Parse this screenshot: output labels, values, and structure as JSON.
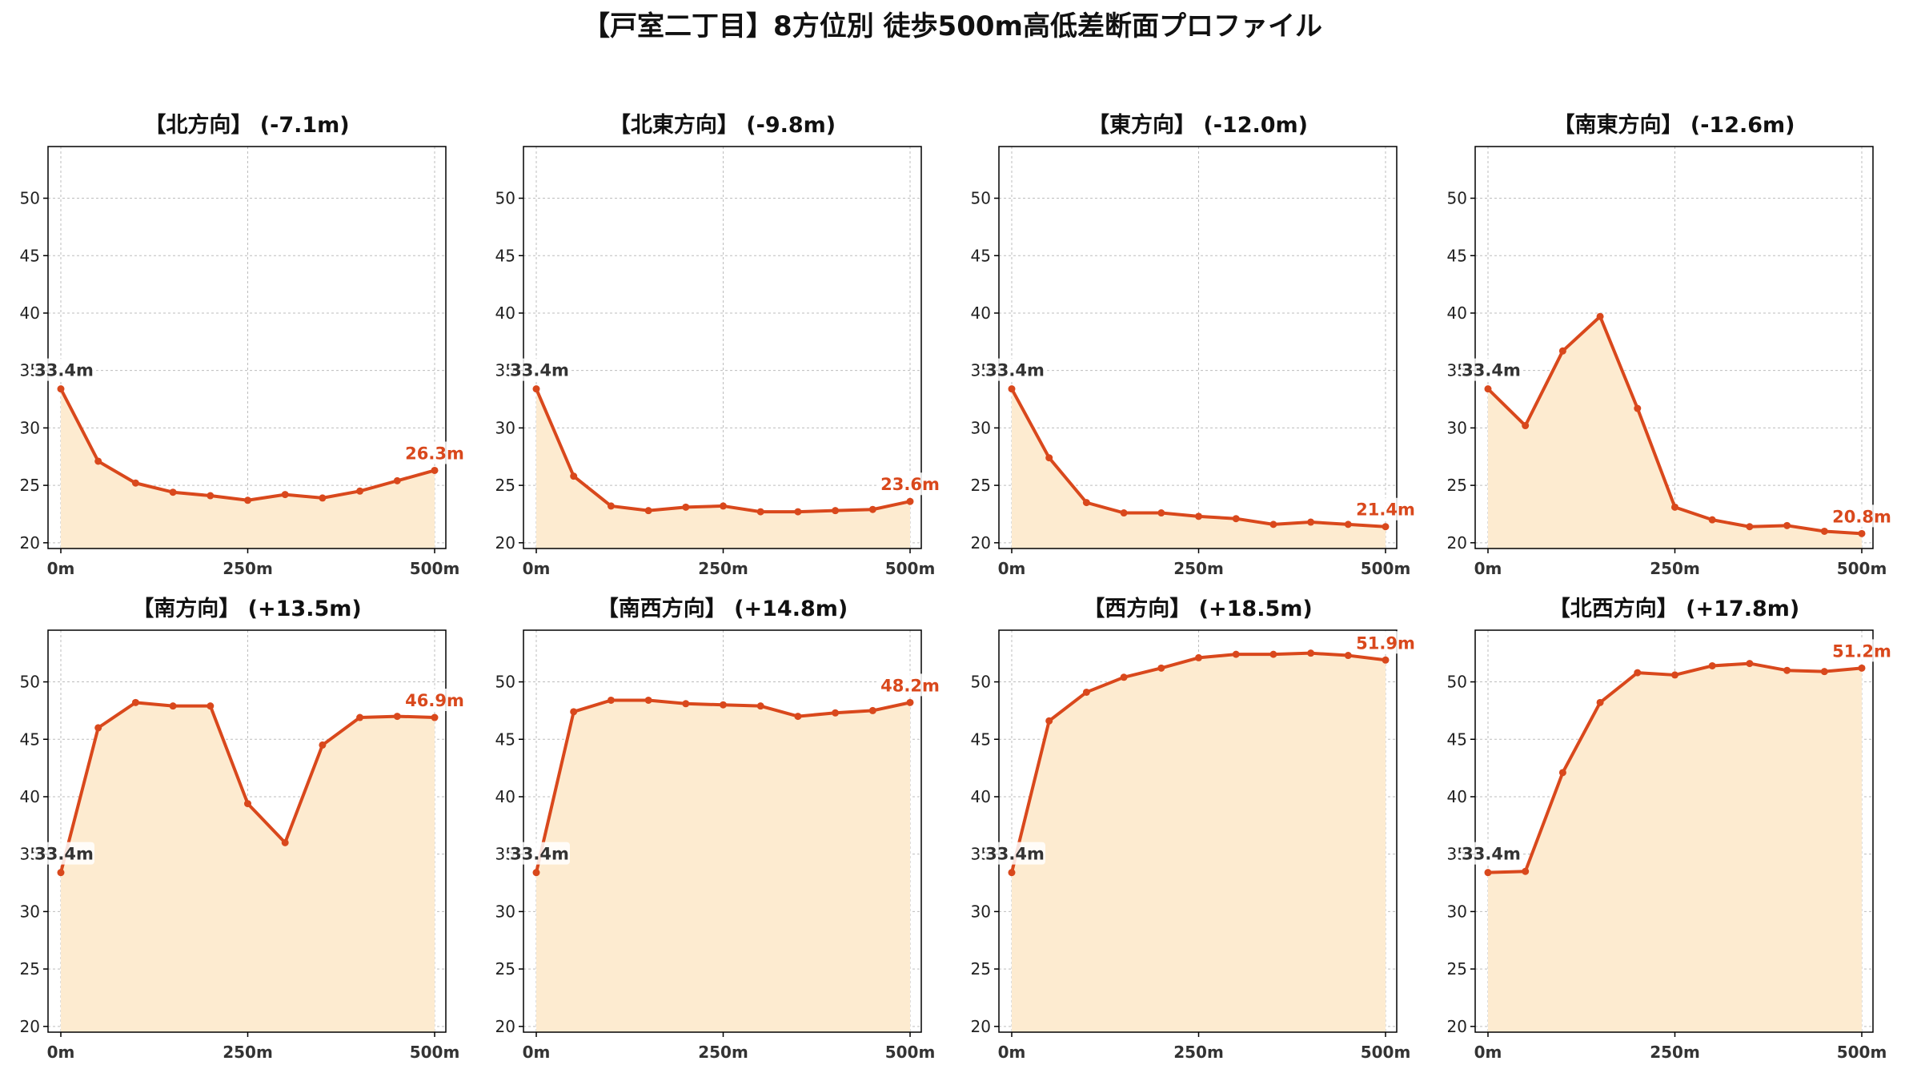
{
  "title": "【戸室二丁目】8方位別 徒歩500m高低差断面プロファイル",
  "colors": {
    "line": "#d9481c",
    "fill": "#fdebd0",
    "grid": "#bdbdbd",
    "axis": "#000000",
    "text": "#222222"
  },
  "chart_data": [
    {
      "type": "area",
      "title": "【北方向】 (-7.1m)",
      "x": [
        0,
        50,
        100,
        150,
        200,
        250,
        300,
        350,
        400,
        450,
        500
      ],
      "values": [
        33.4,
        27.1,
        25.2,
        24.4,
        24.1,
        23.7,
        24.2,
        23.9,
        24.5,
        25.4,
        26.3
      ],
      "ylim": [
        19.5,
        54.5
      ],
      "yticks": [
        "20",
        "25",
        "30",
        "35",
        "40",
        "45",
        "50"
      ],
      "xticks": [
        "0m",
        "250m",
        "500m"
      ],
      "start_label": "33.4m",
      "end_label": "26.3m",
      "grid": true
    },
    {
      "type": "area",
      "title": "【北東方向】 (-9.8m)",
      "x": [
        0,
        50,
        100,
        150,
        200,
        250,
        300,
        350,
        400,
        450,
        500
      ],
      "values": [
        33.4,
        25.8,
        23.2,
        22.8,
        23.1,
        23.2,
        22.7,
        22.7,
        22.8,
        22.9,
        23.6
      ],
      "ylim": [
        19.5,
        54.5
      ],
      "yticks": [
        "20",
        "25",
        "30",
        "35",
        "40",
        "45",
        "50"
      ],
      "xticks": [
        "0m",
        "250m",
        "500m"
      ],
      "start_label": "33.4m",
      "end_label": "23.6m",
      "grid": true
    },
    {
      "type": "area",
      "title": "【東方向】 (-12.0m)",
      "x": [
        0,
        50,
        100,
        150,
        200,
        250,
        300,
        350,
        400,
        450,
        500
      ],
      "values": [
        33.4,
        27.4,
        23.5,
        22.6,
        22.6,
        22.3,
        22.1,
        21.6,
        21.8,
        21.6,
        21.4
      ],
      "ylim": [
        19.5,
        54.5
      ],
      "yticks": [
        "20",
        "25",
        "30",
        "35",
        "40",
        "45",
        "50"
      ],
      "xticks": [
        "0m",
        "250m",
        "500m"
      ],
      "start_label": "33.4m",
      "end_label": "21.4m",
      "grid": true
    },
    {
      "type": "area",
      "title": "【南東方向】 (-12.6m)",
      "x": [
        0,
        50,
        100,
        150,
        200,
        250,
        300,
        350,
        400,
        450,
        500
      ],
      "values": [
        33.4,
        30.2,
        36.7,
        39.7,
        31.7,
        23.1,
        22.0,
        21.4,
        21.5,
        21.0,
        20.8
      ],
      "ylim": [
        19.5,
        54.5
      ],
      "yticks": [
        "20",
        "25",
        "30",
        "35",
        "40",
        "45",
        "50"
      ],
      "xticks": [
        "0m",
        "250m",
        "500m"
      ],
      "start_label": "33.4m",
      "end_label": "20.8m",
      "grid": true
    },
    {
      "type": "area",
      "title": "【南方向】 (+13.5m)",
      "x": [
        0,
        50,
        100,
        150,
        200,
        250,
        300,
        350,
        400,
        450,
        500
      ],
      "values": [
        33.4,
        46.0,
        48.2,
        47.9,
        47.9,
        39.4,
        36.0,
        44.5,
        46.9,
        47.0,
        46.9
      ],
      "ylim": [
        19.5,
        54.5
      ],
      "yticks": [
        "20",
        "25",
        "30",
        "35",
        "40",
        "45",
        "50"
      ],
      "xticks": [
        "0m",
        "250m",
        "500m"
      ],
      "start_label": "33.4m",
      "end_label": "46.9m",
      "grid": true
    },
    {
      "type": "area",
      "title": "【南西方向】 (+14.8m)",
      "x": [
        0,
        50,
        100,
        150,
        200,
        250,
        300,
        350,
        400,
        450,
        500
      ],
      "values": [
        33.4,
        47.4,
        48.4,
        48.4,
        48.1,
        48.0,
        47.9,
        47.0,
        47.3,
        47.5,
        48.2
      ],
      "ylim": [
        19.5,
        54.5
      ],
      "yticks": [
        "20",
        "25",
        "30",
        "35",
        "40",
        "45",
        "50"
      ],
      "xticks": [
        "0m",
        "250m",
        "500m"
      ],
      "start_label": "33.4m",
      "end_label": "48.2m",
      "grid": true
    },
    {
      "type": "area",
      "title": "【西方向】 (+18.5m)",
      "x": [
        0,
        50,
        100,
        150,
        200,
        250,
        300,
        350,
        400,
        450,
        500
      ],
      "values": [
        33.4,
        46.6,
        49.1,
        50.4,
        51.2,
        52.1,
        52.4,
        52.4,
        52.5,
        52.3,
        51.9
      ],
      "ylim": [
        19.5,
        54.5
      ],
      "yticks": [
        "20",
        "25",
        "30",
        "35",
        "40",
        "45",
        "50"
      ],
      "xticks": [
        "0m",
        "250m",
        "500m"
      ],
      "start_label": "33.4m",
      "end_label": "51.9m",
      "grid": true
    },
    {
      "type": "area",
      "title": "【北西方向】 (+17.8m)",
      "x": [
        0,
        50,
        100,
        150,
        200,
        250,
        300,
        350,
        400,
        450,
        500
      ],
      "values": [
        33.4,
        33.5,
        42.1,
        48.2,
        50.8,
        50.6,
        51.4,
        51.6,
        51.0,
        50.9,
        51.2
      ],
      "ylim": [
        19.5,
        54.5
      ],
      "yticks": [
        "20",
        "25",
        "30",
        "35",
        "40",
        "45",
        "50"
      ],
      "xticks": [
        "0m",
        "250m",
        "500m"
      ],
      "start_label": "33.4m",
      "end_label": "51.2m",
      "grid": true
    }
  ]
}
